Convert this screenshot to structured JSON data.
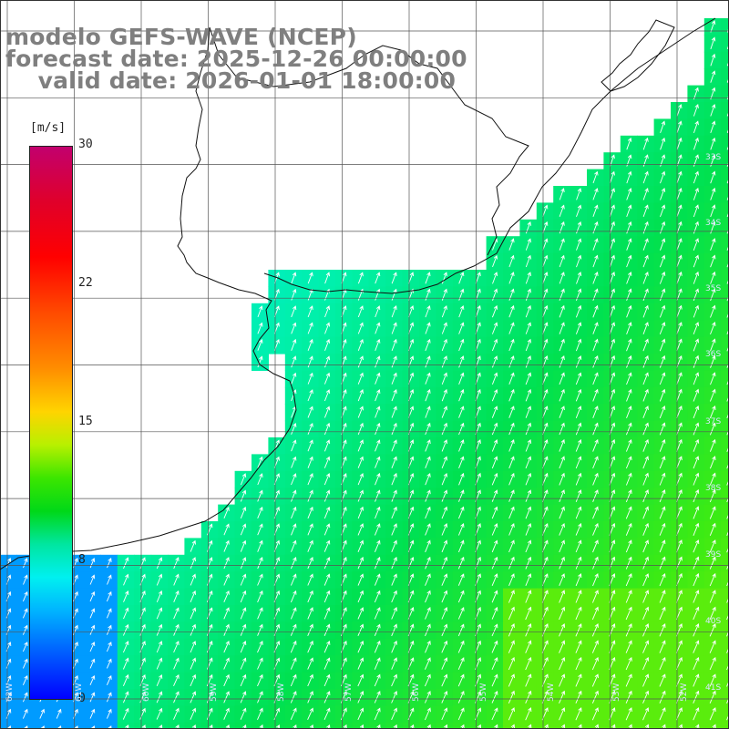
{
  "title": {
    "line1": "modelo GEFS-WAVE (NCEP)",
    "line2": "forecast date: 2025-12-26 00:00:00",
    "line3": "    valid date: 2026-01-01 18:00:00"
  },
  "colorbar": {
    "unit": "[m/s]",
    "min": 0,
    "max": 30,
    "ticks": [
      "30",
      "22",
      "15",
      "8",
      "0"
    ]
  },
  "lat_labels": [
    "33S",
    "34S",
    "35S",
    "36S",
    "37S",
    "38S",
    "39S",
    "40S",
    "41S"
  ],
  "lon_labels": [
    "62W",
    "61W",
    "60W",
    "59W",
    "58W",
    "57W",
    "56W",
    "55W",
    "54W",
    "53W",
    "52W"
  ],
  "wind": {
    "direction": "from south-west (arrows pointing north-east)",
    "max_region_speed_ms": 13,
    "min_region_speed_ms": 6
  }
}
